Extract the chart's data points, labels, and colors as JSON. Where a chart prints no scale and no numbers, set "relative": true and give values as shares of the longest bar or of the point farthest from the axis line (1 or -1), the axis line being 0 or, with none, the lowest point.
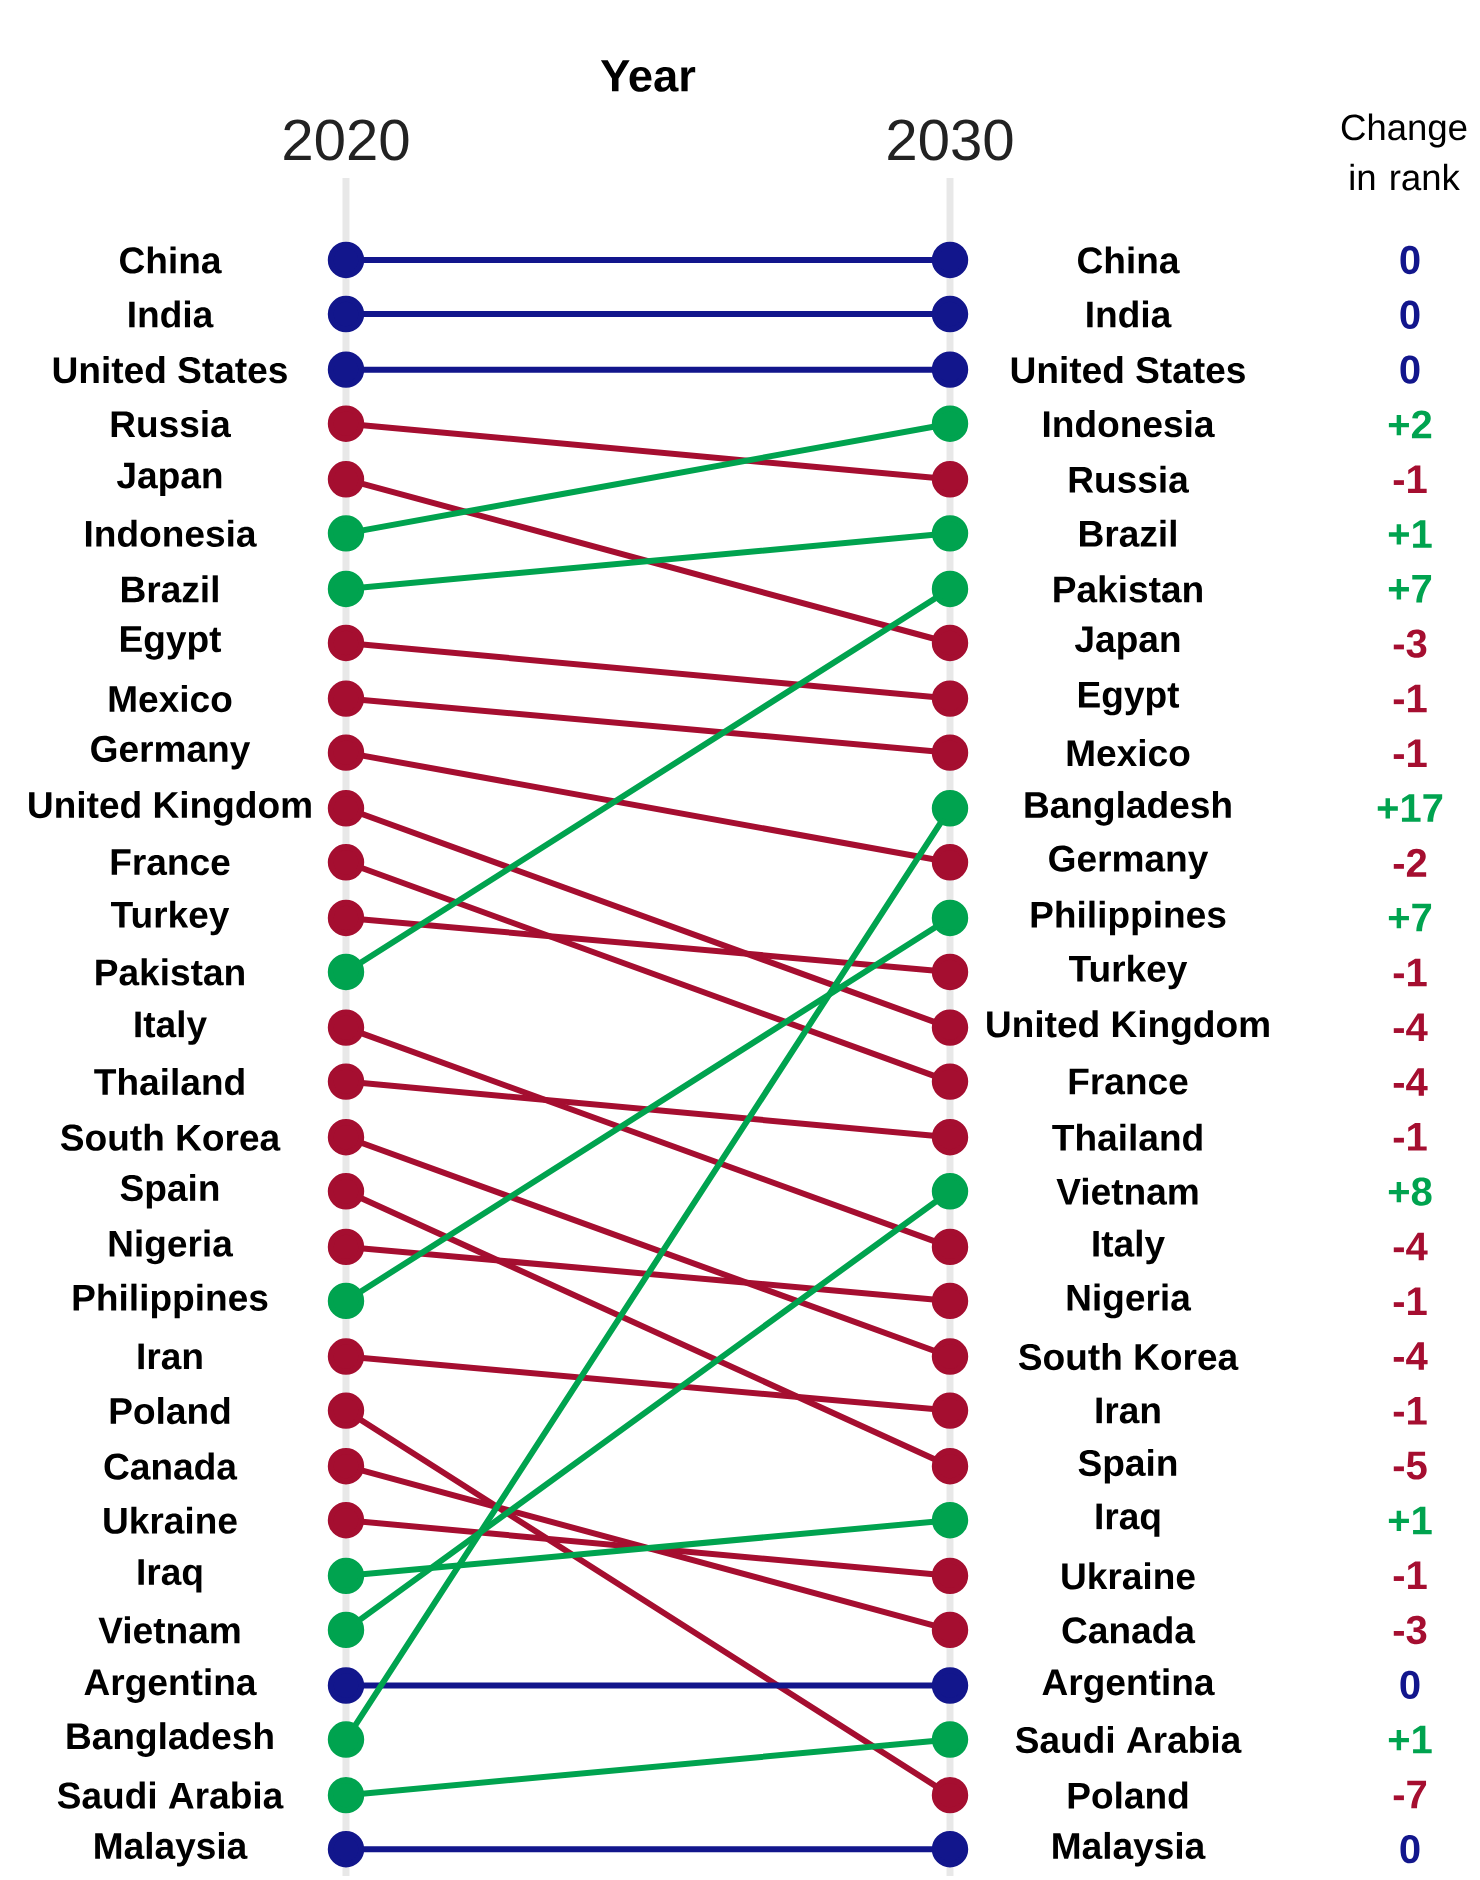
{
  "chart_data": {
    "type": "line",
    "relative": true,
    "xlabel": "Year",
    "categories": [
      "2020",
      "2030"
    ],
    "tick_labels": "x",
    "grid": "x",
    "marker": "circle",
    "line_style": "solid",
    "series": [
      {
        "name": "China",
        "color": "#12168c",
        "values": [
          1,
          1
        ]
      },
      {
        "name": "India",
        "color": "#12168c",
        "values": [
          0.966,
          0.966
        ]
      },
      {
        "name": "United States",
        "color": "#12168c",
        "values": [
          0.931,
          0.931
        ]
      },
      {
        "name": "Russia",
        "color": "#a50e30",
        "values": [
          0.897,
          0.862
        ]
      },
      {
        "name": "Japan",
        "color": "#a50e30",
        "values": [
          0.862,
          0.759
        ]
      },
      {
        "name": "Indonesia",
        "color": "#00a34f",
        "values": [
          0.828,
          0.897
        ]
      },
      {
        "name": "Brazil",
        "color": "#00a34f",
        "values": [
          0.793,
          0.828
        ]
      },
      {
        "name": "Egypt",
        "color": "#a50e30",
        "values": [
          0.759,
          0.724
        ]
      },
      {
        "name": "Mexico",
        "color": "#a50e30",
        "values": [
          0.724,
          0.69
        ]
      },
      {
        "name": "Germany",
        "color": "#a50e30",
        "values": [
          0.69,
          0.621
        ]
      },
      {
        "name": "United Kingdom",
        "color": "#a50e30",
        "values": [
          0.655,
          0.517
        ]
      },
      {
        "name": "France",
        "color": "#a50e30",
        "values": [
          0.621,
          0.483
        ]
      },
      {
        "name": "Turkey",
        "color": "#a50e30",
        "values": [
          0.586,
          0.552
        ]
      },
      {
        "name": "Pakistan",
        "color": "#00a34f",
        "values": [
          0.552,
          0.793
        ]
      },
      {
        "name": "Italy",
        "color": "#a50e30",
        "values": [
          0.517,
          0.379
        ]
      },
      {
        "name": "Thailand",
        "color": "#a50e30",
        "values": [
          0.483,
          0.448
        ]
      },
      {
        "name": "South Korea",
        "color": "#a50e30",
        "values": [
          0.448,
          0.31
        ]
      },
      {
        "name": "Spain",
        "color": "#a50e30",
        "values": [
          0.414,
          0.241
        ]
      },
      {
        "name": "Nigeria",
        "color": "#a50e30",
        "values": [
          0.379,
          0.345
        ]
      },
      {
        "name": "Philippines",
        "color": "#00a34f",
        "values": [
          0.345,
          0.586
        ]
      },
      {
        "name": "Iran",
        "color": "#a50e30",
        "values": [
          0.31,
          0.276
        ]
      },
      {
        "name": "Poland",
        "color": "#a50e30",
        "values": [
          0.276,
          0.034
        ]
      },
      {
        "name": "Canada",
        "color": "#a50e30",
        "values": [
          0.241,
          0.138
        ]
      },
      {
        "name": "Ukraine",
        "color": "#a50e30",
        "values": [
          0.207,
          0.172
        ]
      },
      {
        "name": "Iraq",
        "color": "#00a34f",
        "values": [
          0.172,
          0.207
        ]
      },
      {
        "name": "Vietnam",
        "color": "#00a34f",
        "values": [
          0.138,
          0.414
        ]
      },
      {
        "name": "Argentina",
        "color": "#12168c",
        "values": [
          0.103,
          0.103
        ]
      },
      {
        "name": "Bangladesh",
        "color": "#00a34f",
        "values": [
          0.069,
          0.655
        ]
      },
      {
        "name": "Saudi Arabia",
        "color": "#00a34f",
        "values": [
          0.034,
          0.069
        ]
      },
      {
        "name": "Malaysia",
        "color": "#12168c",
        "values": [
          0,
          0
        ]
      }
    ],
    "annotations": [
      "Change in rank",
      "0",
      "0",
      "0",
      "+2",
      "-1",
      "+1",
      "+7",
      "-3",
      "-1",
      "-1",
      "+17",
      "-2",
      "+7",
      "-1",
      "-4",
      "-4",
      "-1",
      "+8",
      "-4",
      "-1",
      "-4",
      "-1",
      "-5",
      "+1",
      "-1",
      "-3",
      "0",
      "+1",
      "-7",
      "0"
    ]
  }
}
